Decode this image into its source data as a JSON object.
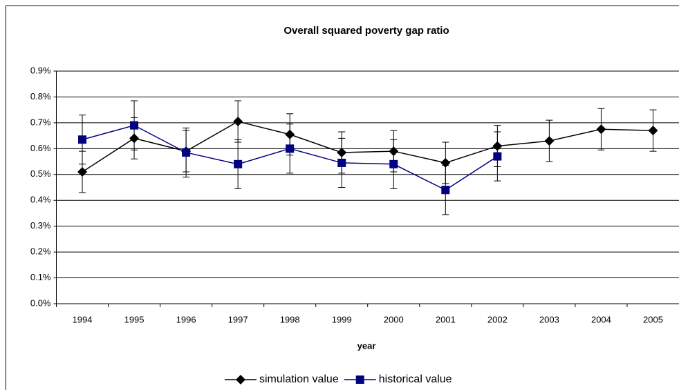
{
  "chart_data": {
    "type": "line",
    "title": "Overall squared poverty gap ratio",
    "x_label": "year",
    "categories": [
      "1994",
      "1995",
      "1996",
      "1997",
      "1998",
      "1999",
      "2000",
      "2001",
      "2002",
      "2003",
      "2004",
      "2005"
    ],
    "series": [
      {
        "name": "simulation value",
        "color": "#000000",
        "marker": "diamond",
        "values": [
          0.51,
          0.64,
          0.59,
          0.705,
          0.655,
          0.585,
          0.59,
          0.545,
          0.61,
          0.63,
          0.675,
          0.67
        ],
        "errors": [
          0.08,
          0.08,
          0.08,
          0.08,
          0.08,
          0.08,
          0.08,
          0.08,
          0.08,
          0.08,
          0.08,
          0.08
        ]
      },
      {
        "name": "historical value",
        "color": "#000080",
        "marker": "square",
        "values": [
          0.635,
          0.69,
          0.585,
          0.54,
          0.6,
          0.545,
          0.54,
          0.44,
          0.57,
          null,
          null,
          null
        ],
        "errors": [
          0.095,
          0.095,
          0.095,
          0.095,
          0.095,
          0.095,
          0.095,
          0.095,
          0.095,
          null,
          null,
          null
        ]
      }
    ],
    "ylim": [
      0,
      0.9
    ],
    "yticks": [
      {
        "value": 0,
        "label": "0.0%"
      },
      {
        "value": 0.1,
        "label": "0.1%"
      },
      {
        "value": 0.2,
        "label": "0.2%"
      },
      {
        "value": 0.3,
        "label": "0.3%"
      },
      {
        "value": 0.4,
        "label": "0.4%"
      },
      {
        "value": 0.5,
        "label": "0.5%"
      },
      {
        "value": 0.6,
        "label": "0.6%"
      },
      {
        "value": 0.7,
        "label": "0.7%"
      },
      {
        "value": 0.8,
        "label": "0.8%"
      },
      {
        "value": 0.9,
        "label": "0.9%"
      }
    ],
    "grid": true,
    "legend": "bottom"
  }
}
